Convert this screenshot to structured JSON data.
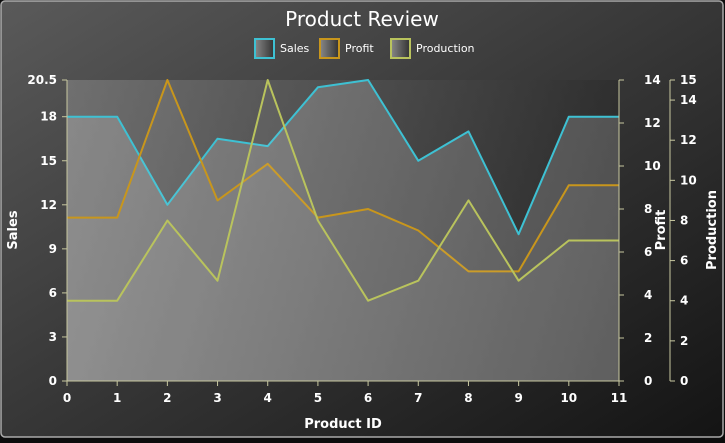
{
  "chart_data": {
    "type": "line",
    "title": "Product Review",
    "xlabel": "Product ID",
    "x": [
      0,
      1,
      2,
      3,
      4,
      5,
      6,
      7,
      8,
      9,
      10,
      11
    ],
    "xlim": [
      0,
      11
    ],
    "legend_position": "top-center",
    "background": "dark gradient",
    "axes": {
      "sales": {
        "label": "Sales",
        "side": "left",
        "ylim": [
          0,
          20.5
        ],
        "ticks": [
          "0",
          "3",
          "6",
          "9",
          "12",
          "15",
          "18",
          "20.5"
        ]
      },
      "profit": {
        "label": "Profit",
        "side": "right",
        "ylim": [
          0,
          14
        ],
        "ticks": [
          "0",
          "2",
          "4",
          "6",
          "8",
          "10",
          "12",
          "14"
        ]
      },
      "production": {
        "label": "Production",
        "side": "right",
        "ylim": [
          0,
          15
        ],
        "ticks": [
          "0",
          "2",
          "4",
          "6",
          "8",
          "10",
          "12",
          "14",
          "15"
        ]
      }
    },
    "series": [
      {
        "name": "Sales",
        "axis": "sales",
        "color": "#3ec1d3",
        "values": [
          18,
          18,
          12,
          16.5,
          16,
          20,
          20.5,
          15,
          17,
          10,
          18,
          18
        ]
      },
      {
        "name": "Profit",
        "axis": "profit",
        "color": "#c8961c",
        "values": [
          7.6,
          7.6,
          14,
          8.4,
          10.1,
          7.6,
          8,
          7,
          5.1,
          5.1,
          9.1,
          9.1
        ]
      },
      {
        "name": "Production",
        "axis": "production",
        "color": "#b9c35d",
        "values": [
          4,
          4,
          8,
          5,
          15,
          8,
          4,
          5,
          9,
          5,
          7,
          7
        ]
      }
    ]
  }
}
